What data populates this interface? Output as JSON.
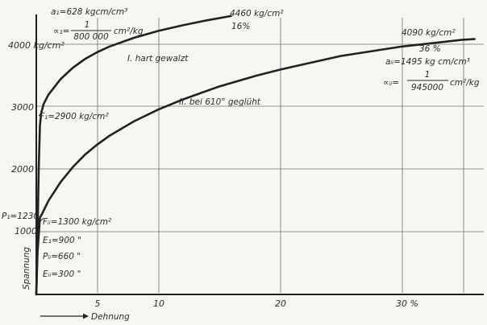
{
  "chart_data": {
    "type": "line",
    "title": "",
    "xlabel": "Dehnung",
    "ylabel": "Spannung",
    "xlim": [
      0,
      36
    ],
    "ylim": [
      0,
      4600
    ],
    "grid": true,
    "x_ticks": [
      {
        "value": 5,
        "label": "5"
      },
      {
        "value": 10,
        "label": "10"
      },
      {
        "value": 20,
        "label": "20"
      },
      {
        "value": 30,
        "label": "30 %"
      }
    ],
    "y_ticks": [
      {
        "value": 1000,
        "label": "1000"
      },
      {
        "value": 2000,
        "label": "2000"
      },
      {
        "value": 3000,
        "label": "3000"
      },
      {
        "value": 4000,
        "label": "4000 kg/cm²"
      }
    ],
    "series": [
      {
        "name": "I. hart gewalzt",
        "x": [
          0,
          0.1,
          0.2,
          0.3,
          0.4,
          0.6,
          1,
          2,
          3,
          4,
          5,
          6,
          8,
          10,
          12,
          14,
          16
        ],
        "y": [
          0,
          900,
          2000,
          2700,
          2900,
          3050,
          3200,
          3450,
          3630,
          3770,
          3880,
          3970,
          4110,
          4220,
          4310,
          4390,
          4460
        ]
      },
      {
        "name": "II. bei 610° geglüht",
        "x": [
          0,
          0.1,
          0.3,
          0.5,
          1,
          2,
          3,
          4,
          5,
          6,
          8,
          10,
          12,
          15,
          18,
          20,
          25,
          30,
          35,
          36
        ],
        "y": [
          0,
          660,
          1230,
          1300,
          1500,
          1800,
          2040,
          2240,
          2400,
          2540,
          2770,
          2960,
          3120,
          3330,
          3500,
          3600,
          3820,
          3970,
          4080,
          4090
        ]
      }
    ],
    "annotations": {
      "curve1_label": "I. hart gewalzt",
      "curve2_label": "II. bei 610° geglüht",
      "top1_stress": "4460 kg/cm²",
      "top1_pct": "16%",
      "top2_stress": "4090 kg/cm²",
      "top2_pct": "36 %",
      "aI": "a₁=628 kgcm/cm³",
      "alphaI_prefix": "∝₁=",
      "alphaI_num": "1",
      "alphaI_den": "800 000",
      "alphaI_unit": "cm²/kg",
      "aII": "aᵢᵢ=1495 kg cm/cm³",
      "alphaII_prefix": "∝ᵢᵢ=",
      "alphaII_num": "1",
      "alphaII_den": "945000",
      "alphaII_unit": "cm²/kg",
      "FI": "F₁=2900 kg/cm²",
      "FII": "Fᵢᵢ=1300 kg/cm²",
      "PI": "P₁=1230",
      "EI": "E₁=900  \"",
      "PII": "Pᵢᵢ=660  \"",
      "EII": "Eᵢᵢ=300  \""
    }
  }
}
